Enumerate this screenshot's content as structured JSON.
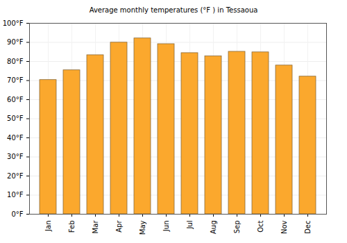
{
  "chart_data": {
    "type": "bar",
    "title": "Average monthly temperatures (°F ) in Tessaoua",
    "categories": [
      "Jan",
      "Feb",
      "Mar",
      "Apr",
      "May",
      "Jun",
      "Jul",
      "Aug",
      "Sep",
      "Oct",
      "Nov",
      "Dec"
    ],
    "values": [
      70.3,
      75.4,
      83.3,
      89.9,
      92.1,
      89.1,
      84.4,
      82.7,
      85.1,
      84.8,
      77.9,
      72.1
    ],
    "color": "#fba82d",
    "ylim": [
      0,
      100
    ],
    "yticks": [
      {
        "value": 0,
        "label": "0°F"
      },
      {
        "value": 10,
        "label": "10°F"
      },
      {
        "value": 20,
        "label": "20°F"
      },
      {
        "value": 30,
        "label": "30°F"
      },
      {
        "value": 40,
        "label": "40°F"
      },
      {
        "value": 50,
        "label": "50°F"
      },
      {
        "value": 60,
        "label": "60°F"
      },
      {
        "value": 70,
        "label": "70°F"
      },
      {
        "value": 80,
        "label": "80°F"
      },
      {
        "value": 90,
        "label": "90°F"
      },
      {
        "value": 100,
        "label": "100°F"
      }
    ],
    "grid": true
  }
}
